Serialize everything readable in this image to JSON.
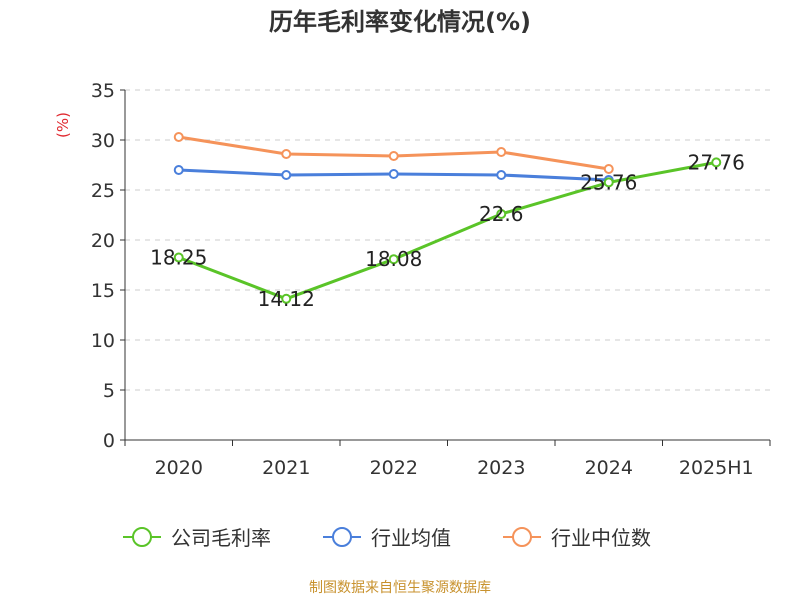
{
  "chart_data": {
    "type": "line",
    "title": "历年毛利率变化情况(%)",
    "ylabel": "(%)",
    "categories": [
      "2020",
      "2021",
      "2022",
      "2023",
      "2024",
      "2025H1"
    ],
    "ylim": [
      0,
      35
    ],
    "yticks": [
      0,
      5,
      10,
      15,
      20,
      25,
      30,
      35
    ],
    "grid": true,
    "legend_position": "bottom",
    "series": [
      {
        "name": "公司毛利率",
        "color": "#5ac428",
        "values": [
          18.25,
          14.12,
          18.08,
          22.6,
          25.76,
          27.76
        ],
        "labels": [
          "18.25",
          "14.12",
          "18.08",
          "22.6",
          "25.76",
          "27.76"
        ]
      },
      {
        "name": "行业均值",
        "color": "#4a7fdb",
        "values": [
          27.0,
          26.5,
          26.6,
          26.5,
          26.0,
          null
        ]
      },
      {
        "name": "行业中位数",
        "color": "#f5935a",
        "values": [
          30.3,
          28.6,
          28.4,
          28.8,
          27.1,
          null
        ]
      }
    ]
  },
  "source_text": "制图数据来自恒生聚源数据库",
  "colors": {
    "axis": "#333333",
    "ylabel": "#e0282f",
    "source": "#c8922e"
  }
}
